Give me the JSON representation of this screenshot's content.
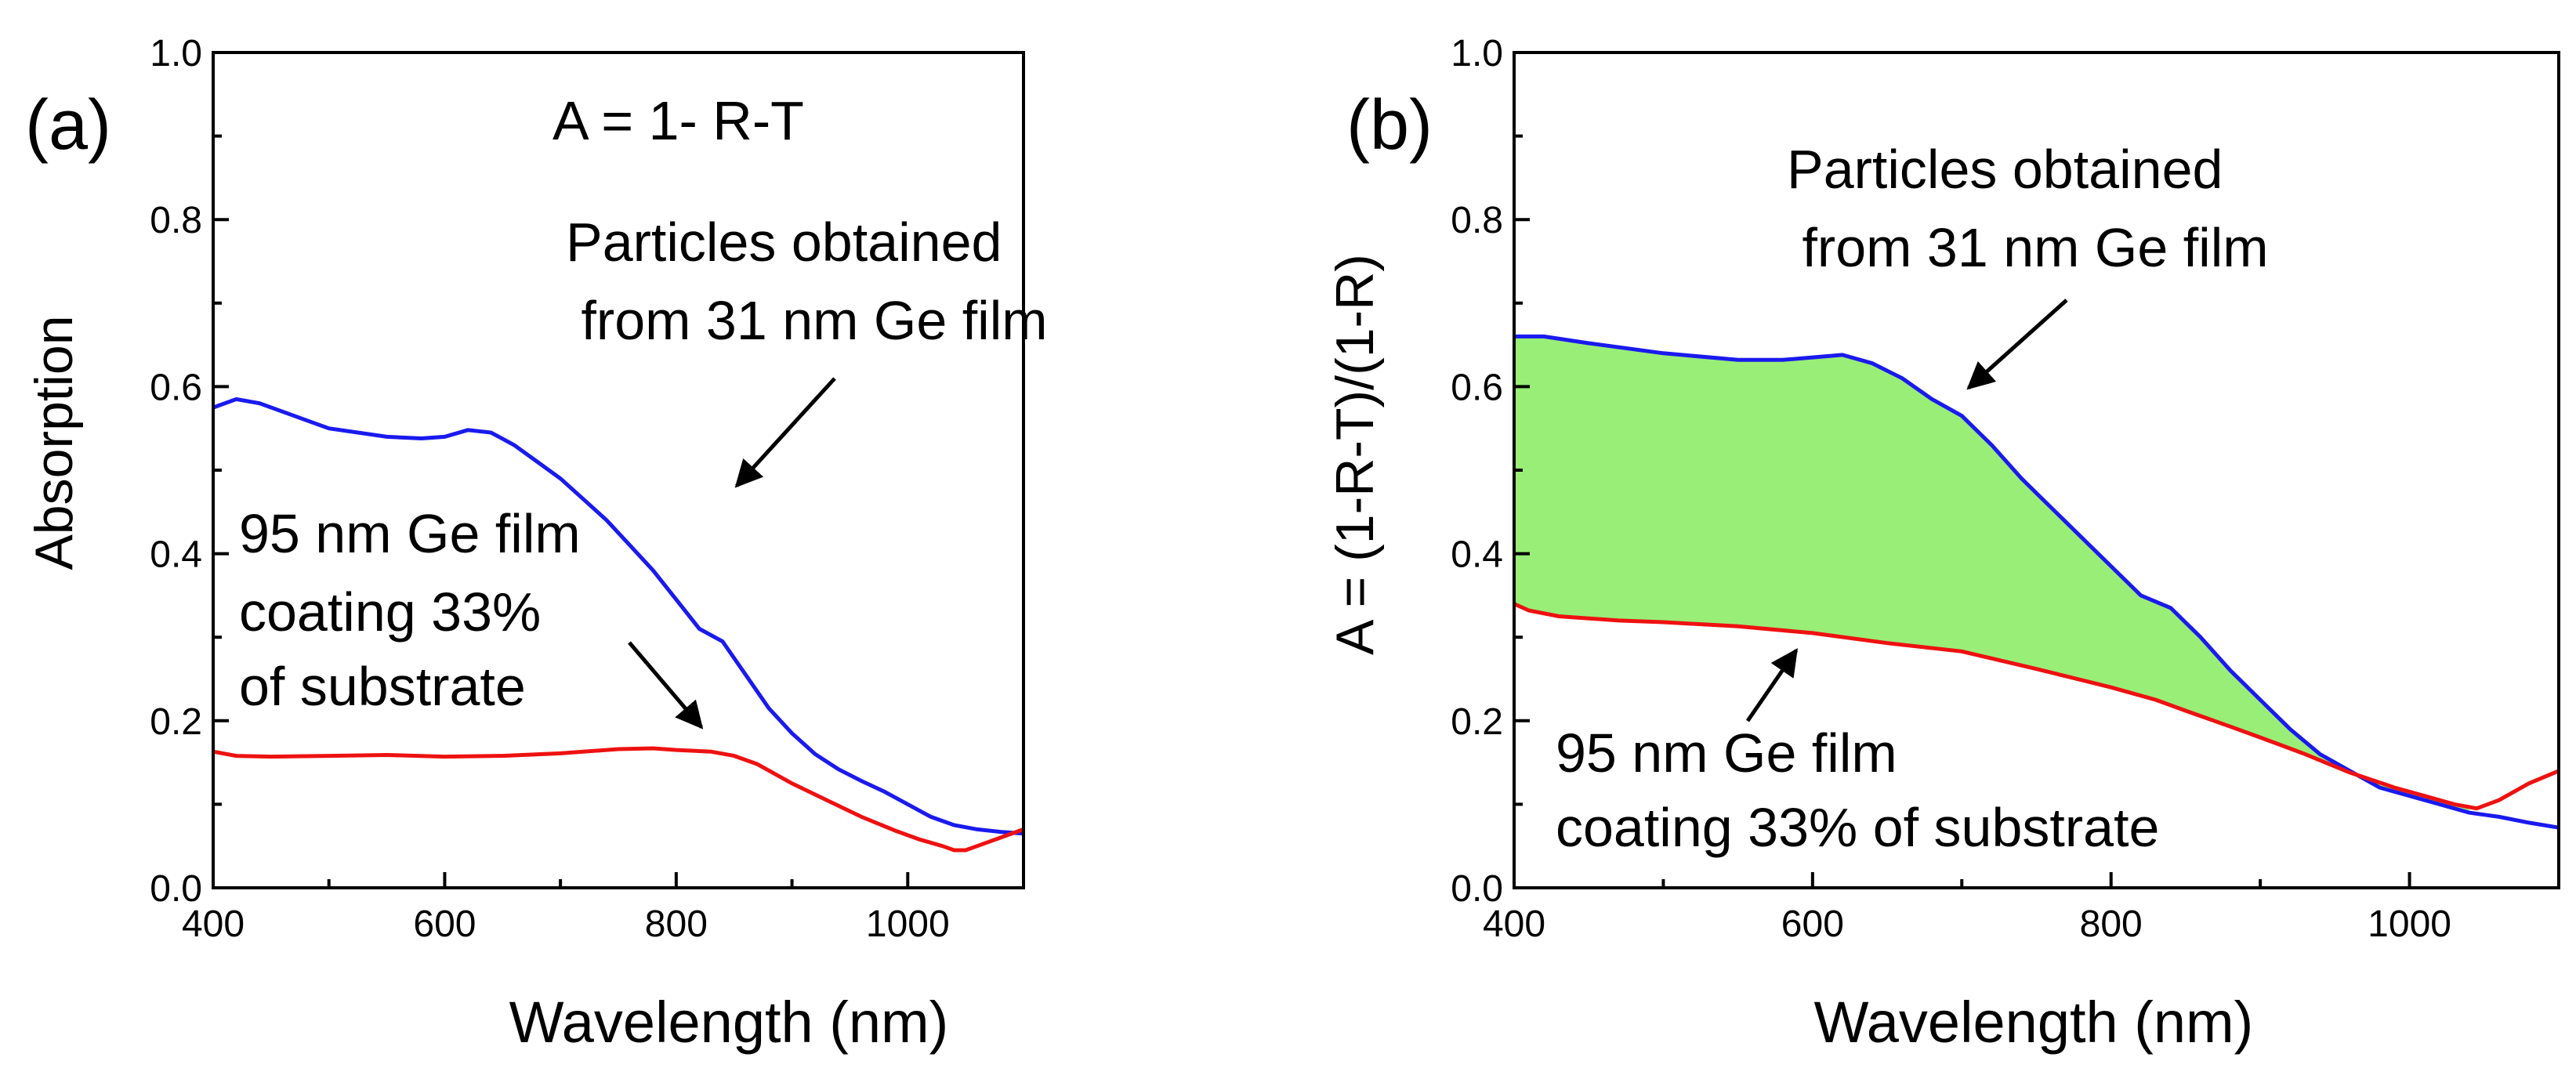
{
  "chart_data": [
    {
      "type": "line",
      "panel_label": "(a)",
      "xlabel": "Wavelength (nm)",
      "ylabel": "Absorption",
      "xlim": [
        400,
        1100
      ],
      "ylim": [
        0.0,
        1.0
      ],
      "xticks": [
        400,
        600,
        800,
        1000
      ],
      "xtick_labels": [
        "400",
        "600",
        "800",
        "1000"
      ],
      "yticks": [
        0.0,
        0.2,
        0.4,
        0.6,
        0.8,
        1.0
      ],
      "ytick_labels": [
        "0.0",
        "0.2",
        "0.4",
        "0.6",
        "0.8",
        "1.0"
      ],
      "formula": "A = 1- R-T",
      "series": [
        {
          "name": "Particles obtained from 31 nm Ge film",
          "color": "#1a1aee",
          "x": [
            400,
            420,
            440,
            470,
            500,
            550,
            580,
            600,
            620,
            640,
            660,
            680,
            700,
            720,
            740,
            760,
            780,
            800,
            820,
            840,
            860,
            880,
            900,
            920,
            940,
            960,
            980,
            1000,
            1020,
            1040,
            1060,
            1080,
            1100
          ],
          "y": [
            0.575,
            0.585,
            0.58,
            0.565,
            0.55,
            0.54,
            0.538,
            0.54,
            0.548,
            0.545,
            0.53,
            0.51,
            0.49,
            0.465,
            0.44,
            0.41,
            0.38,
            0.345,
            0.31,
            0.295,
            0.255,
            0.215,
            0.185,
            0.16,
            0.142,
            0.128,
            0.115,
            0.1,
            0.085,
            0.075,
            0.07,
            0.067,
            0.065
          ]
        },
        {
          "name": "95 nm Ge film coating 33% of substrate",
          "color": "#ee1111",
          "x": [
            400,
            420,
            450,
            500,
            550,
            600,
            650,
            700,
            750,
            780,
            800,
            830,
            850,
            870,
            900,
            930,
            960,
            990,
            1010,
            1030,
            1040,
            1050,
            1060,
            1080,
            1100
          ],
          "y": [
            0.163,
            0.158,
            0.157,
            0.158,
            0.159,
            0.157,
            0.158,
            0.161,
            0.166,
            0.167,
            0.165,
            0.163,
            0.158,
            0.148,
            0.125,
            0.105,
            0.085,
            0.068,
            0.058,
            0.05,
            0.045,
            0.045,
            0.05,
            0.06,
            0.07
          ]
        }
      ],
      "annotations": [
        {
          "lines": [
            "Particles obtained",
            " from 31 nm Ge film"
          ]
        },
        {
          "lines": [
            "95 nm Ge film",
            "coating 33%",
            "of substrate"
          ]
        }
      ]
    },
    {
      "type": "line",
      "panel_label": "(b)",
      "xlabel": "Wavelength (nm)",
      "ylabel": "A = (1-R-T)/(1-R)",
      "xlim": [
        400,
        1100
      ],
      "ylim": [
        0.0,
        1.0
      ],
      "xticks": [
        400,
        600,
        800,
        1000
      ],
      "xtick_labels": [
        "400",
        "600",
        "800",
        "1000"
      ],
      "yticks": [
        0.0,
        0.2,
        0.4,
        0.6,
        0.8,
        1.0
      ],
      "ytick_labels": [
        "0.0",
        "0.2",
        "0.4",
        "0.6",
        "0.8",
        "1.0"
      ],
      "fill_between": {
        "color": "#99ee77",
        "between": [
          "Particles obtained from 31 nm Ge film",
          "95 nm Ge film coating 33% of substrate"
        ],
        "x_range": [
          400,
          1040
        ]
      },
      "series": [
        {
          "name": "Particles obtained from 31 nm Ge film",
          "color": "#1a1aee",
          "x": [
            400,
            420,
            450,
            500,
            550,
            580,
            600,
            620,
            640,
            660,
            680,
            700,
            720,
            740,
            760,
            780,
            800,
            820,
            840,
            860,
            880,
            900,
            920,
            940,
            960,
            980,
            1000,
            1020,
            1040,
            1060,
            1080,
            1100
          ],
          "y": [
            0.66,
            0.66,
            0.652,
            0.64,
            0.632,
            0.632,
            0.635,
            0.638,
            0.628,
            0.61,
            0.585,
            0.565,
            0.53,
            0.49,
            0.455,
            0.42,
            0.385,
            0.35,
            0.335,
            0.3,
            0.26,
            0.225,
            0.19,
            0.16,
            0.14,
            0.12,
            0.11,
            0.1,
            0.09,
            0.085,
            0.078,
            0.072
          ]
        },
        {
          "name": "95 nm Ge film coating 33% of substrate",
          "color": "#ee1111",
          "x": [
            400,
            410,
            430,
            470,
            500,
            550,
            600,
            650,
            700,
            750,
            800,
            830,
            850,
            880,
            900,
            930,
            960,
            990,
            1010,
            1030,
            1045,
            1060,
            1080,
            1100
          ],
          "y": [
            0.34,
            0.332,
            0.325,
            0.32,
            0.318,
            0.313,
            0.305,
            0.293,
            0.283,
            0.262,
            0.24,
            0.225,
            0.212,
            0.193,
            0.18,
            0.16,
            0.138,
            0.12,
            0.11,
            0.1,
            0.095,
            0.105,
            0.125,
            0.14
          ]
        }
      ],
      "annotations": [
        {
          "lines": [
            "Particles obtained",
            " from 31 nm Ge film"
          ]
        },
        {
          "lines": [
            "95 nm Ge film",
            "coating 33% of substrate"
          ]
        }
      ]
    }
  ]
}
